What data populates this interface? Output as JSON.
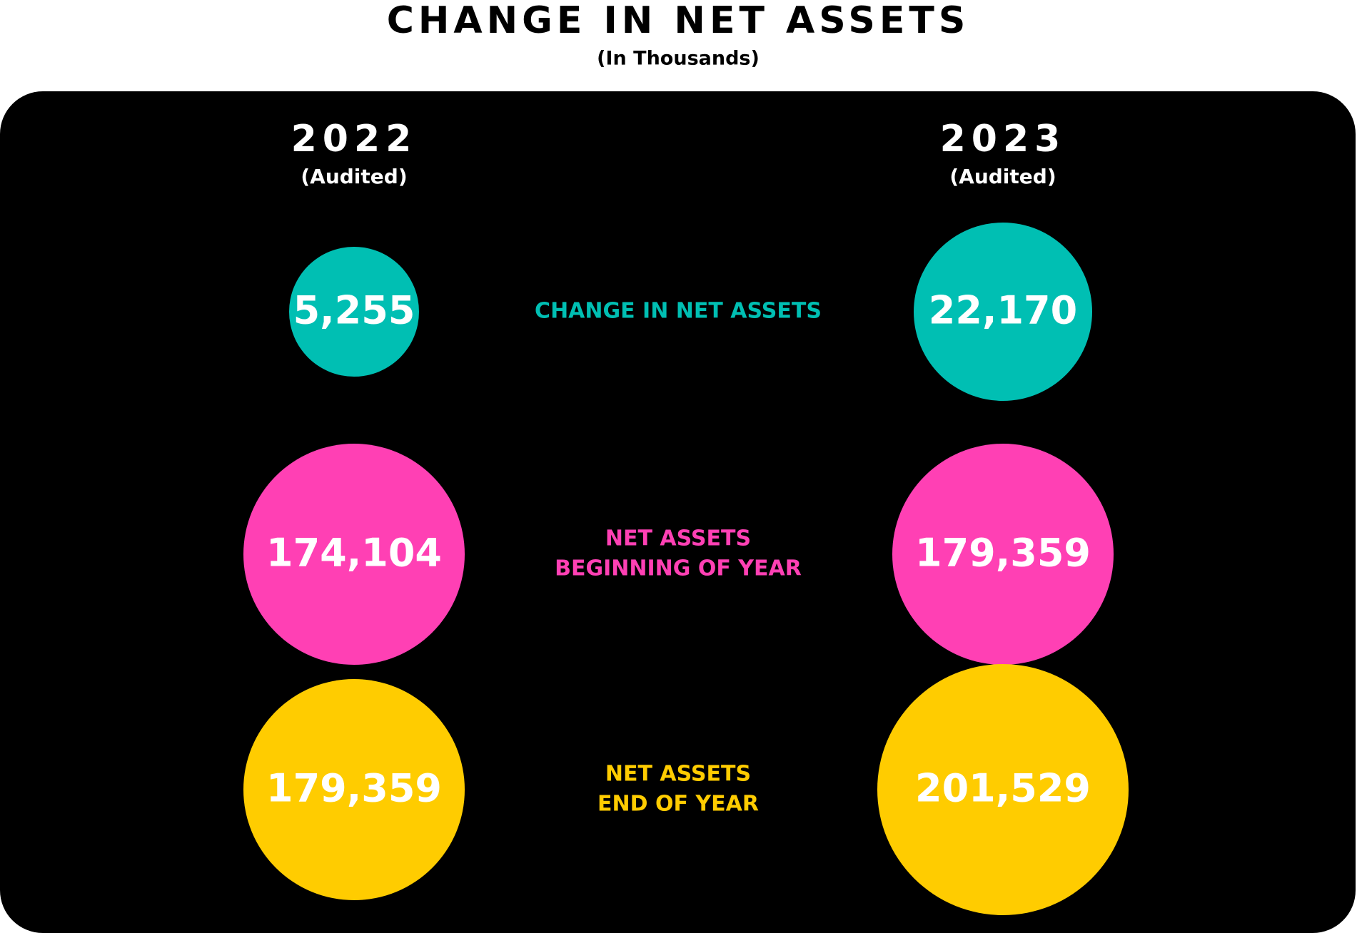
{
  "header": {
    "title": "CHANGE IN NET ASSETS",
    "subtitle": "(In Thousands)"
  },
  "columns": [
    {
      "year": "2022",
      "note": "(Audited)"
    },
    {
      "year": "2023",
      "note": "(Audited)"
    }
  ],
  "rows": [
    {
      "label_lines": [
        "CHANGE IN NET ASSETS"
      ],
      "color": "#00bfb3",
      "values": [
        "5,255",
        "22,170"
      ]
    },
    {
      "label_lines": [
        "NET ASSETS",
        "BEGINNING OF YEAR"
      ],
      "color": "#ff40b4",
      "values": [
        "174,104",
        "179,359"
      ]
    },
    {
      "label_lines": [
        "NET ASSETS",
        "END OF YEAR"
      ],
      "color": "#ffcc00",
      "values": [
        "179,359",
        "201,529"
      ]
    }
  ]
}
